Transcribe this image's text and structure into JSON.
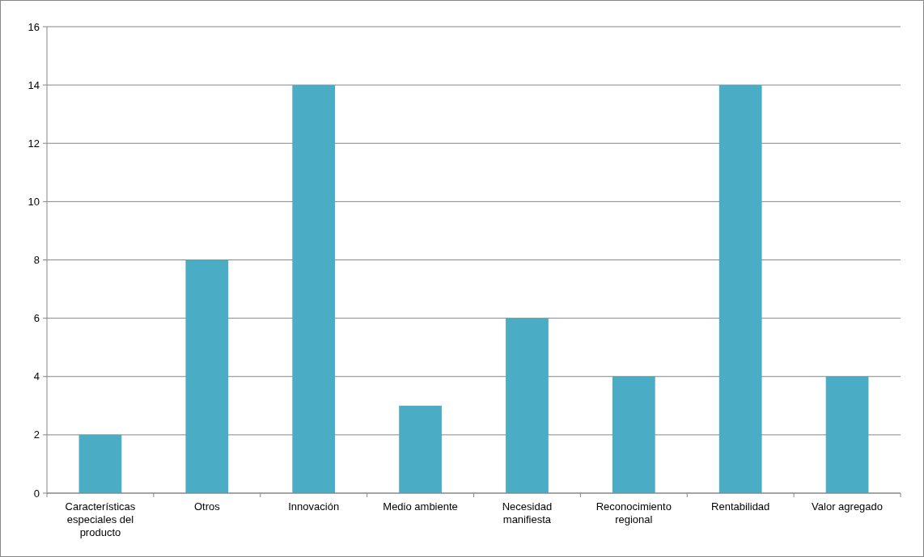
{
  "chart_data": {
    "type": "bar",
    "categories": [
      "Características especiales del producto",
      "Otros",
      "Innovación",
      "Medio ambiente",
      "Necesidad manifiesta",
      "Reconocimiento regional",
      "Rentabilidad",
      "Valor agregado"
    ],
    "values": [
      2,
      8,
      14,
      3,
      6,
      4,
      14,
      4
    ],
    "color": "#4bacc6",
    "ylim": [
      0,
      16
    ],
    "yticks": [
      0,
      2,
      4,
      6,
      8,
      10,
      12,
      14,
      16
    ],
    "grid": "y"
  }
}
